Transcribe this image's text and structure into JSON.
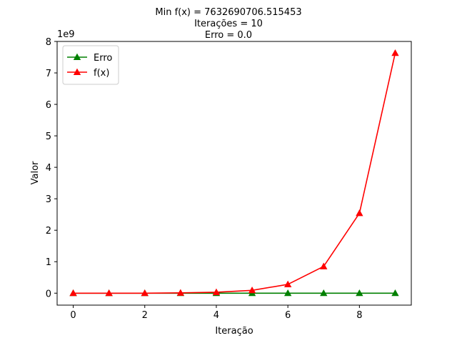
{
  "chart_data": {
    "type": "line",
    "title_lines": [
      "Min f(x) = 7632690706.515453",
      "Iterações = 10",
      "Erro = 0.0"
    ],
    "xlabel": "Iteração",
    "ylabel": "Valor",
    "y_offset_label": "1e9",
    "xlim": [
      -0.45,
      9.45
    ],
    "ylim": [
      -0.38,
      8.0
    ],
    "x_ticks": [
      0,
      2,
      4,
      6,
      8
    ],
    "x_tick_labels": [
      "0",
      "2",
      "4",
      "6",
      "8"
    ],
    "y_ticks": [
      0,
      1,
      2,
      3,
      4,
      5,
      6,
      7,
      8
    ],
    "y_tick_labels": [
      "0",
      "1",
      "2",
      "3",
      "4",
      "5",
      "6",
      "7",
      "8"
    ],
    "y_unit_scale": 1000000000,
    "grid": false,
    "legend_position": "upper-left",
    "x": [
      0,
      1,
      2,
      3,
      4,
      5,
      6,
      7,
      8,
      9
    ],
    "series": [
      {
        "name": "Erro",
        "color": "#008000",
        "marker": "triangle-up",
        "values": [
          0,
          0,
          0,
          0,
          0,
          0,
          0,
          0,
          0,
          0
        ]
      },
      {
        "name": "f(x)",
        "color": "#ff0000",
        "marker": "triangle-up",
        "values": [
          0,
          0,
          0,
          0.01,
          0.03,
          0.09,
          0.28,
          0.85,
          2.54,
          7.63
        ]
      }
    ]
  }
}
